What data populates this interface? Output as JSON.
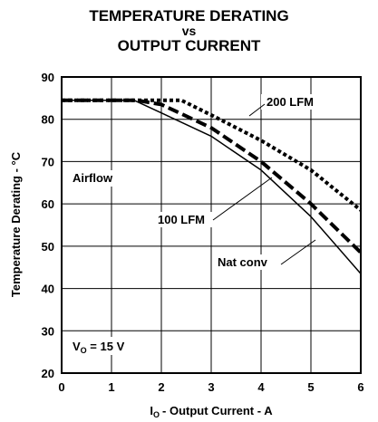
{
  "chart_data": {
    "type": "line",
    "title_lines": [
      "TEMPERATURE DERATING",
      "vs",
      "OUTPUT CURRENT"
    ],
    "xlabel": "- Output Current - A",
    "xlabel_symbol": "I",
    "xlabel_subscript": "O",
    "ylabel": "Temperature Derating - °C",
    "xlim": [
      0,
      6
    ],
    "ylim": [
      20,
      90
    ],
    "x_ticks": [
      0,
      1,
      2,
      3,
      4,
      5,
      6
    ],
    "y_ticks": [
      20,
      30,
      40,
      50,
      60,
      70,
      80,
      90
    ],
    "grid": true,
    "series": [
      {
        "name": "200 LFM",
        "style": "dotted",
        "color": "#000000",
        "points": [
          [
            0,
            84.5
          ],
          [
            2.4,
            84.5
          ],
          [
            3.0,
            81.0
          ],
          [
            4.0,
            75.0
          ],
          [
            5.0,
            68.0
          ],
          [
            6.0,
            58.5
          ]
        ]
      },
      {
        "name": "100 LFM",
        "style": "dashed",
        "color": "#000000",
        "points": [
          [
            0,
            84.5
          ],
          [
            1.5,
            84.5
          ],
          [
            2.0,
            83.5
          ],
          [
            3.0,
            78.0
          ],
          [
            4.0,
            70.0
          ],
          [
            5.0,
            60.0
          ],
          [
            6.0,
            48.5
          ]
        ]
      },
      {
        "name": "Nat conv",
        "style": "solid",
        "color": "#000000",
        "points": [
          [
            0,
            84.5
          ],
          [
            1.45,
            84.5
          ],
          [
            2.0,
            81.5
          ],
          [
            3.0,
            76.0
          ],
          [
            4.0,
            68.0
          ],
          [
            5.0,
            57.0
          ],
          [
            6.0,
            43.5
          ]
        ]
      }
    ],
    "annotations": {
      "airflow": "Airflow",
      "vo_symbol": "V",
      "vo_subscript": "O",
      "vo_value": " = 15 V"
    }
  }
}
